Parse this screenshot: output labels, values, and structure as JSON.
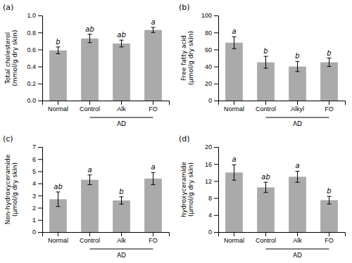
{
  "chart_data": [
    {
      "type": "bar",
      "title": "(a)",
      "y_label": "Total cholesterol\n(mmol/g dry skin)",
      "categories": [
        "Normal",
        "Control",
        "Alk",
        "FO"
      ],
      "values": [
        0.59,
        0.73,
        0.67,
        0.83
      ],
      "errors": [
        0.04,
        0.05,
        0.04,
        0.03
      ],
      "sig_labels": [
        "b",
        "ab",
        "ab",
        "a"
      ],
      "annotations": [
        {
          "text": "AD",
          "from": "Control",
          "to": "FO"
        }
      ],
      "color": "#aaaaaa",
      "ylim": [
        0,
        1.0
      ],
      "yticks": [
        {
          "value": 0,
          "label": "0.0"
        },
        0.2,
        0.4,
        0.6,
        0.8,
        {
          "value": 1,
          "label": "1.0"
        }
      ]
    },
    {
      "type": "bar",
      "title": "(b)",
      "y_label": "Free fatty acid\n(μmol/g dry skin)",
      "categories": [
        "Normal",
        "Control",
        "Alkyl",
        "FO"
      ],
      "values": [
        68,
        45,
        40,
        45
      ],
      "errors": [
        7,
        7,
        6,
        5
      ],
      "sig_labels": [
        "a",
        "b",
        "b",
        "b"
      ],
      "annotations": [
        {
          "text": "AD",
          "from": "Control",
          "to": "FO"
        }
      ],
      "color": "#aaaaaa",
      "ylim": [
        0,
        100
      ],
      "yticks": [
        0,
        20,
        40,
        60,
        80,
        100
      ]
    },
    {
      "type": "bar",
      "title": "(c)",
      "y_label": "Non-hydroxyceramide\n(μmol/g dry skin)",
      "categories": [
        "Normal",
        "Control",
        "Alk",
        "FO"
      ],
      "values": [
        2.7,
        4.3,
        2.6,
        4.4
      ],
      "errors": [
        0.6,
        0.4,
        0.3,
        0.5
      ],
      "sig_labels": [
        "ab",
        "a",
        "b",
        "a"
      ],
      "annotations": [
        {
          "text": "AD",
          "from": "Control",
          "to": "FO"
        }
      ],
      "color": "#aaaaaa",
      "ylim": [
        0,
        7
      ],
      "yticks": [
        0,
        1,
        2,
        3,
        4,
        5,
        6,
        7
      ]
    },
    {
      "type": "bar",
      "title": "(d)",
      "y_label": "hydroxyceramide\n(μmol/g dry skin)",
      "categories": [
        "Normal",
        "Control",
        "Alk",
        "FO"
      ],
      "values": [
        14,
        10.5,
        13,
        7.5
      ],
      "errors": [
        1.8,
        1.2,
        1.3,
        0.9
      ],
      "sig_labels": [
        "a",
        "ab",
        "a",
        "b"
      ],
      "annotations": [
        {
          "text": "AD",
          "from": "Control",
          "to": "FO"
        }
      ],
      "color": "#aaaaaa",
      "ylim": [
        0,
        20
      ],
      "yticks": [
        0,
        4,
        8,
        12,
        16,
        20
      ]
    }
  ]
}
